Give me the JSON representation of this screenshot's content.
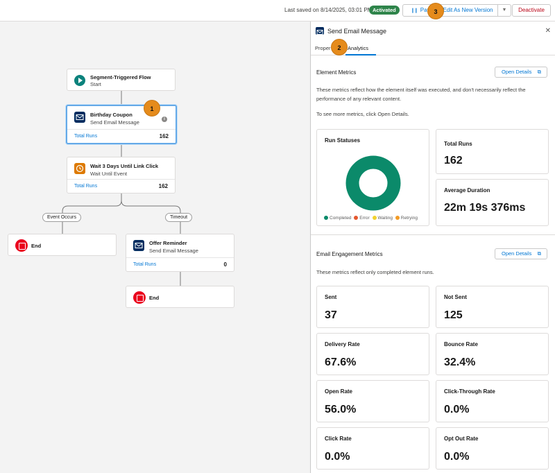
{
  "topbar": {
    "saved_text": "Last saved on 8/14/2025, 03:01 PM",
    "status_badge": "Activated",
    "pause_label": "Pau",
    "edit_label": "Edit As New Version",
    "deactivate_label": "Deactivate"
  },
  "flow": {
    "start": {
      "title": "Segment-Triggered Flow",
      "subtitle": "Start"
    },
    "birthday": {
      "title": "Birthday Coupon",
      "subtitle": "Send Email Message",
      "runs_label": "Total Runs",
      "runs": "162"
    },
    "wait": {
      "title": "Wait 3 Days Until Link Click",
      "subtitle": "Wait Until Event",
      "runs_label": "Total Runs",
      "runs": "162"
    },
    "branch_left": "Event Occurs",
    "branch_right": "Timeout",
    "end_left": "End",
    "offer": {
      "title": "Offer Reminder",
      "subtitle": "Send Email Message",
      "runs_label": "Total Runs",
      "runs": "0"
    },
    "end_bottom": "End"
  },
  "callouts": [
    "1",
    "2",
    "3"
  ],
  "panel": {
    "title": "Send Email Message",
    "tab_properties": "Proper",
    "tab_analytics": "Analytics",
    "element_metrics": {
      "title": "Element Metrics",
      "open_details": "Open Details",
      "desc1": "These metrics reflect how the element itself was executed, and don't necessarily reflect the performance of any relevant content.",
      "desc2": "To see more metrics, click Open Details.",
      "run_statuses_title": "Run Statuses",
      "legend": [
        "Completed",
        "Error",
        "Waiting",
        "Retrying"
      ],
      "legend_colors": [
        "#0b8a6a",
        "#e4572e",
        "#f2d22e",
        "#f29b26"
      ],
      "completed_fraction": 1.0,
      "total_runs_label": "Total Runs",
      "total_runs": "162",
      "avg_duration_label": "Average Duration",
      "avg_duration": "22m 19s 376ms"
    },
    "engagement": {
      "title": "Email Engagement Metrics",
      "open_details": "Open Details",
      "desc": "These metrics reflect only completed element runs.",
      "cards": [
        {
          "label": "Sent",
          "value": "37"
        },
        {
          "label": "Not Sent",
          "value": "125"
        },
        {
          "label": "Delivery Rate",
          "value": "67.6%"
        },
        {
          "label": "Bounce Rate",
          "value": "32.4%"
        },
        {
          "label": "Open Rate",
          "value": "56.0%"
        },
        {
          "label": "Click-Through Rate",
          "value": "0.0%"
        },
        {
          "label": "Click Rate",
          "value": "0.0%"
        },
        {
          "label": "Opt Out Rate",
          "value": "0.0%"
        }
      ]
    }
  }
}
